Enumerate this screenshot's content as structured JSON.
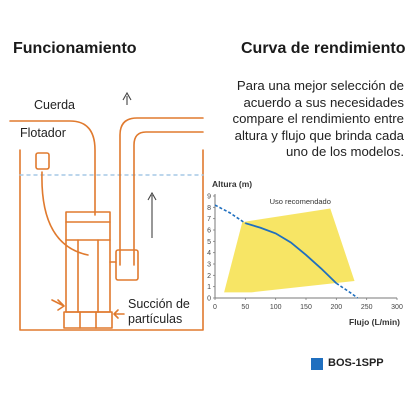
{
  "headers": {
    "left": "Funcionamiento",
    "right": "Curva de rendimiento"
  },
  "description_lines": [
    "Para una mejor selección de",
    "acuerdo a sus necesidades",
    "compare el rendimiento entre",
    "altura y flujo que brinda cada",
    "uno de los modelos."
  ],
  "diagram": {
    "label_cuerda": "Cuerda",
    "label_flotador": "Flotador",
    "label_succion": [
      "Succión de",
      "partículas"
    ]
  },
  "chart_data": {
    "type": "line",
    "ylabel": "Altura (m)",
    "xlabel": "Flujo (L/min)",
    "xlim": [
      0,
      300
    ],
    "ylim": [
      0,
      9
    ],
    "x_ticks": [
      0,
      50,
      100,
      150,
      200,
      250,
      300
    ],
    "y_ticks": [
      0,
      1,
      2,
      3,
      4,
      5,
      6,
      7,
      8,
      9
    ],
    "recommended_zone_label": "Uso recomendado",
    "recommended_zone": [
      [
        15,
        0.5
      ],
      [
        45,
        6.7
      ],
      [
        190,
        7.9
      ],
      [
        230,
        1.5
      ],
      [
        60,
        0.5
      ]
    ],
    "series": [
      {
        "name": "BOS-1SPP",
        "color": "#1f6fbf",
        "points": [
          [
            0,
            8.2
          ],
          [
            25,
            7.5
          ],
          [
            50,
            6.6
          ],
          [
            75,
            6.2
          ],
          [
            100,
            5.7
          ],
          [
            125,
            4.9
          ],
          [
            150,
            3.8
          ],
          [
            175,
            2.6
          ],
          [
            200,
            1.3
          ],
          [
            225,
            0.4
          ],
          [
            235,
            0
          ]
        ]
      }
    ]
  },
  "legend": {
    "label": "BOS-1SPP",
    "color": "#1f6fbf"
  },
  "colors": {
    "diagram_line": "#e07a2e",
    "water": "#a6c8e6",
    "zone_fill": "#f6e04a",
    "axis": "#7a7a7a"
  }
}
